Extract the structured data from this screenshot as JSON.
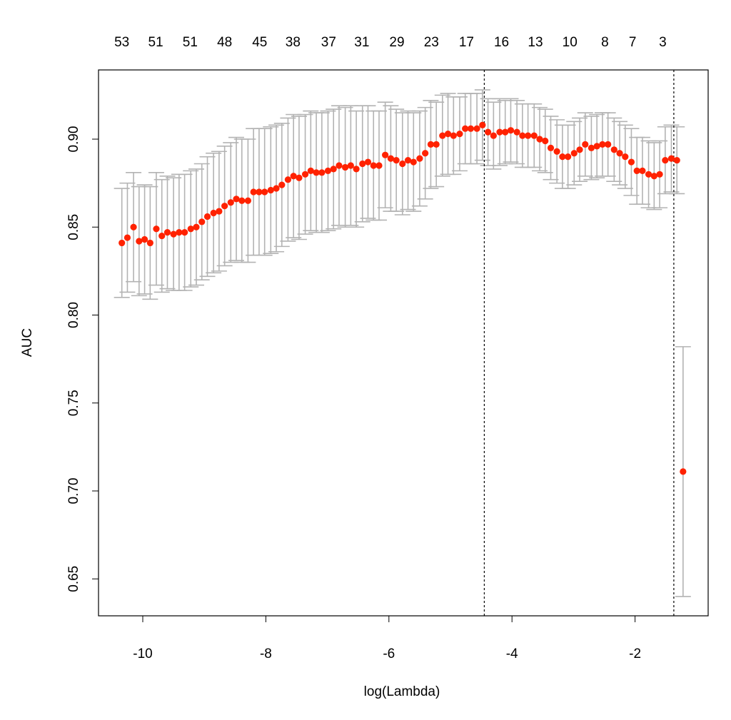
{
  "chart_data": {
    "type": "scatter",
    "xlabel": "log(Lambda)",
    "ylabel": "AUC",
    "xlim": [
      -10.6,
      -0.7
    ],
    "ylim": [
      0.628,
      0.938
    ],
    "x_ticks": [
      -10,
      -8,
      -6,
      -4,
      -2
    ],
    "x_tick_labels": [
      "-10",
      "-8",
      "-6",
      "-4",
      "-2"
    ],
    "y_ticks": [
      0.65,
      0.7,
      0.75,
      0.8,
      0.85,
      0.9
    ],
    "y_tick_labels": [
      "0.65",
      "0.70",
      "0.75",
      "0.80",
      "0.85",
      "0.90"
    ],
    "top_axis": {
      "positions": [
        -10.34,
        -9.79,
        -9.23,
        -8.67,
        -8.1,
        -7.56,
        -6.98,
        -6.44,
        -5.87,
        -5.31,
        -4.74,
        -4.17,
        -3.62,
        -3.06,
        -2.49,
        -2.04,
        -1.55
      ],
      "labels": [
        "53",
        "51",
        "51",
        "48",
        "45",
        "38",
        "37",
        "31",
        "29",
        "23",
        "17",
        "16",
        "13",
        "10",
        "8",
        "7",
        "3"
      ]
    },
    "vlines": [
      -4.45,
      -1.37
    ],
    "grid": false,
    "point_color": "#ff2200",
    "errorbar_color": "#b3b3b3",
    "x": [
      -10.34,
      -10.25,
      -10.15,
      -10.06,
      -9.97,
      -9.88,
      -9.78,
      -9.69,
      -9.6,
      -9.5,
      -9.41,
      -9.32,
      -9.22,
      -9.13,
      -9.04,
      -8.95,
      -8.85,
      -8.76,
      -8.67,
      -8.57,
      -8.48,
      -8.39,
      -8.29,
      -8.2,
      -8.11,
      -8.02,
      -7.92,
      -7.83,
      -7.74,
      -7.64,
      -7.55,
      -7.46,
      -7.36,
      -7.27,
      -7.18,
      -7.09,
      -6.99,
      -6.9,
      -6.81,
      -6.71,
      -6.62,
      -6.53,
      -6.43,
      -6.34,
      -6.25,
      -6.16,
      -6.06,
      -5.97,
      -5.88,
      -5.78,
      -5.69,
      -5.6,
      -5.5,
      -5.41,
      -5.32,
      -5.23,
      -5.13,
      -5.04,
      -4.95,
      -4.85,
      -4.76,
      -4.67,
      -4.57,
      -4.48,
      -4.39,
      -4.3,
      -4.2,
      -4.11,
      -4.02,
      -3.92,
      -3.83,
      -3.74,
      -3.64,
      -3.55,
      -3.46,
      -3.37,
      -3.27,
      -3.18,
      -3.09,
      -2.99,
      -2.9,
      -2.81,
      -2.71,
      -2.62,
      -2.53,
      -2.44,
      -2.34,
      -2.25,
      -2.16,
      -2.06,
      -1.97,
      -1.88,
      -1.78,
      -1.69,
      -1.6,
      -1.51,
      -1.41,
      -1.32,
      -1.22
    ],
    "auc": [
      0.841,
      0.844,
      0.85,
      0.842,
      0.843,
      0.841,
      0.849,
      0.845,
      0.847,
      0.846,
      0.847,
      0.847,
      0.849,
      0.85,
      0.853,
      0.856,
      0.858,
      0.859,
      0.862,
      0.864,
      0.866,
      0.865,
      0.865,
      0.87,
      0.87,
      0.87,
      0.871,
      0.872,
      0.874,
      0.877,
      0.879,
      0.878,
      0.88,
      0.882,
      0.881,
      0.881,
      0.882,
      0.883,
      0.885,
      0.884,
      0.885,
      0.883,
      0.886,
      0.887,
      0.885,
      0.885,
      0.891,
      0.889,
      0.888,
      0.886,
      0.888,
      0.887,
      0.889,
      0.892,
      0.897,
      0.897,
      0.902,
      0.903,
      0.902,
      0.903,
      0.906,
      0.906,
      0.906,
      0.908,
      0.904,
      0.902,
      0.904,
      0.904,
      0.905,
      0.904,
      0.902,
      0.902,
      0.902,
      0.9,
      0.899,
      0.895,
      0.893,
      0.89,
      0.89,
      0.892,
      0.894,
      0.897,
      0.895,
      0.896,
      0.897,
      0.897,
      0.894,
      0.892,
      0.89,
      0.887,
      0.882,
      0.882,
      0.88,
      0.879,
      0.88,
      0.888,
      0.889,
      0.888,
      0.711
    ],
    "se": [
      0.031,
      0.031,
      0.031,
      0.031,
      0.031,
      0.032,
      0.032,
      0.032,
      0.032,
      0.032,
      0.033,
      0.033,
      0.033,
      0.033,
      0.033,
      0.034,
      0.034,
      0.034,
      0.034,
      0.034,
      0.035,
      0.035,
      0.035,
      0.036,
      0.036,
      0.036,
      0.036,
      0.036,
      0.035,
      0.035,
      0.035,
      0.035,
      0.034,
      0.034,
      0.034,
      0.034,
      0.034,
      0.034,
      0.034,
      0.034,
      0.034,
      0.033,
      0.033,
      0.032,
      0.031,
      0.031,
      0.03,
      0.03,
      0.029,
      0.029,
      0.028,
      0.028,
      0.027,
      0.026,
      0.025,
      0.024,
      0.023,
      0.023,
      0.022,
      0.021,
      0.02,
      0.02,
      0.02,
      0.02,
      0.019,
      0.019,
      0.019,
      0.018,
      0.018,
      0.018,
      0.018,
      0.018,
      0.018,
      0.018,
      0.018,
      0.018,
      0.018,
      0.018,
      0.018,
      0.018,
      0.018,
      0.018,
      0.018,
      0.018,
      0.018,
      0.018,
      0.018,
      0.018,
      0.018,
      0.019,
      0.019,
      0.019,
      0.019,
      0.019,
      0.019,
      0.019,
      0.019,
      0.019,
      0.071
    ]
  }
}
